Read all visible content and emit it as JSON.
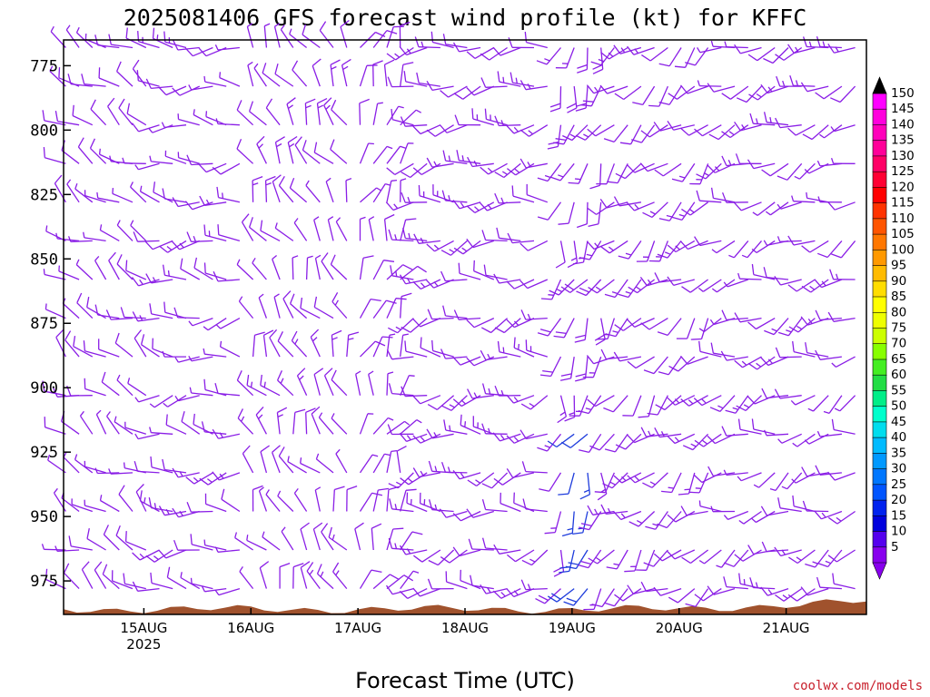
{
  "chart_data": {
    "type": "wind-barb profile (time-height)",
    "title": "2025081406 GFS forecast wind profile (kt) for KFFC",
    "xlabel": "Forecast Time (UTC)",
    "credit": "coolwx.com/models",
    "y_axis": {
      "label": "",
      "ticks": [
        "775",
        "800",
        "825",
        "850",
        "875",
        "900",
        "925",
        "950",
        "975"
      ],
      "range": [
        765,
        988
      ],
      "unit": "hPa"
    },
    "x_axis": {
      "ticks": [
        "15AUG",
        "16AUG",
        "17AUG",
        "18AUG",
        "19AUG",
        "20AUG",
        "21AUG"
      ],
      "tick_sub": [
        "2025",
        "",
        "",
        "",
        "",
        "",
        ""
      ],
      "range_days": [
        14.25,
        21.75
      ]
    },
    "colorbar": {
      "labels": [
        "150",
        "145",
        "140",
        "135",
        "130",
        "125",
        "120",
        "115",
        "110",
        "105",
        "100",
        "95",
        "90",
        "85",
        "80",
        "75",
        "70",
        "65",
        "60",
        "55",
        "50",
        "45",
        "40",
        "35",
        "30",
        "25",
        "20",
        "15",
        "10",
        "5"
      ],
      "colors": [
        "#ff00ff",
        "#ff00dd",
        "#ff00bb",
        "#ff0099",
        "#ff0066",
        "#ff0033",
        "#ff0000",
        "#ff3300",
        "#ff5500",
        "#ff7700",
        "#ff9900",
        "#ffbb00",
        "#ffdd00",
        "#ffff00",
        "#eeff00",
        "#ccff00",
        "#88ff00",
        "#44ee22",
        "#22dd44",
        "#00ee88",
        "#00ffcc",
        "#00ddee",
        "#00bbff",
        "#0099ff",
        "#0077ff",
        "#0055ff",
        "#0022ee",
        "#0000dd",
        "#5500ee",
        "#8800ee"
      ]
    },
    "barb_color": "#8a1ee6",
    "strong_barb_color": "#1e3cdc",
    "terrain_color": "#a0522d",
    "surface_pressure_hpa": 986,
    "pressure_levels": [
      768,
      783,
      798,
      813,
      828,
      843,
      858,
      873,
      888,
      903,
      918,
      933,
      948,
      963,
      978
    ],
    "time_step_hours": 3,
    "wind_regimes": [
      {
        "days": [
          14.25,
          15.1
        ],
        "dir_deg": 300,
        "speed_kt": 10
      },
      {
        "days": [
          15.1,
          16.0
        ],
        "dir_deg": 270,
        "speed_kt": 12
      },
      {
        "days": [
          16.0,
          17.0
        ],
        "dir_deg": 330,
        "speed_kt": 12
      },
      {
        "days": [
          17.0,
          17.4
        ],
        "dir_deg": 20,
        "speed_kt": 10
      },
      {
        "days": [
          17.4,
          18.8
        ],
        "dir_deg": 260,
        "speed_kt": 15
      },
      {
        "days": [
          18.8,
          19.3
        ],
        "dir_deg": 200,
        "speed_kt": 18
      },
      {
        "days": [
          19.3,
          20.3
        ],
        "dir_deg": 230,
        "speed_kt": 14
      },
      {
        "days": [
          20.3,
          21.75
        ],
        "dir_deg": 250,
        "speed_kt": 12
      }
    ]
  }
}
